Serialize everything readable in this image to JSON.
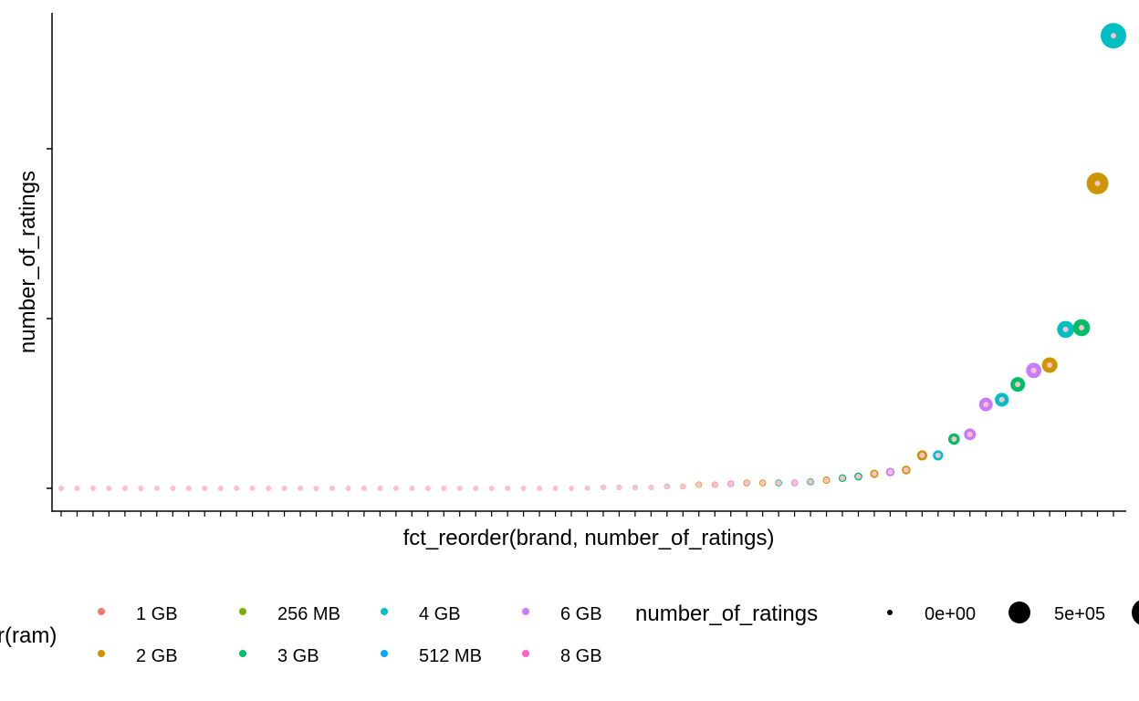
{
  "chart_data": {
    "type": "scatter",
    "title": "",
    "xlabel": "fct_reorder(brand, number_of_ratings)",
    "ylabel": "number_of_ratings",
    "y_ticks": [
      0,
      500000,
      1000000
    ],
    "ylim": [
      -35000,
      1400000
    ],
    "grid": false,
    "legend_placement": "bottom",
    "color_legend": {
      "title": "r(ram)",
      "entries": [
        {
          "label": "1 GB",
          "color": "#F8766D"
        },
        {
          "label": "2 GB",
          "color": "#CD9600"
        },
        {
          "label": "256 MB",
          "color": "#7CAE00"
        },
        {
          "label": "3 GB",
          "color": "#00BE67"
        },
        {
          "label": "4 GB",
          "color": "#00BFC4"
        },
        {
          "label": "512 MB",
          "color": "#00A9FF"
        },
        {
          "label": "6 GB",
          "color": "#C77CFF"
        },
        {
          "label": "8 GB",
          "color": "#FF61CC"
        }
      ]
    },
    "size_legend": {
      "title": "number_of_ratings",
      "entries": [
        {
          "label": "0e+00",
          "value": 0
        },
        {
          "label": "5e+05",
          "value": 500000
        },
        {
          "label": "",
          "value": 1000000
        }
      ]
    },
    "center_color": "#FFC0CB",
    "points": [
      {
        "ram": null,
        "value": 0
      },
      {
        "ram": null,
        "value": 0
      },
      {
        "ram": null,
        "value": 0
      },
      {
        "ram": null,
        "value": 0
      },
      {
        "ram": null,
        "value": 0
      },
      {
        "ram": null,
        "value": 0
      },
      {
        "ram": null,
        "value": 0
      },
      {
        "ram": null,
        "value": 0
      },
      {
        "ram": null,
        "value": 0
      },
      {
        "ram": null,
        "value": 0
      },
      {
        "ram": null,
        "value": 0
      },
      {
        "ram": null,
        "value": 0
      },
      {
        "ram": null,
        "value": 0
      },
      {
        "ram": null,
        "value": 0
      },
      {
        "ram": null,
        "value": 0
      },
      {
        "ram": null,
        "value": 0
      },
      {
        "ram": null,
        "value": 0
      },
      {
        "ram": null,
        "value": 0
      },
      {
        "ram": null,
        "value": 0
      },
      {
        "ram": null,
        "value": 0
      },
      {
        "ram": null,
        "value": 0
      },
      {
        "ram": null,
        "value": 0
      },
      {
        "ram": null,
        "value": 0
      },
      {
        "ram": null,
        "value": 0
      },
      {
        "ram": null,
        "value": 0
      },
      {
        "ram": null,
        "value": 0
      },
      {
        "ram": null,
        "value": 0
      },
      {
        "ram": null,
        "value": 0
      },
      {
        "ram": null,
        "value": 0
      },
      {
        "ram": null,
        "value": 0
      },
      {
        "ram": null,
        "value": 0
      },
      {
        "ram": null,
        "value": 0
      },
      {
        "ram": null,
        "value": 0
      },
      {
        "ram": null,
        "value": 500
      },
      {
        "ram": "2 GB",
        "value": 2700
      },
      {
        "ram": "2 GB",
        "value": 2700
      },
      {
        "ram": "3 GB",
        "value": 2700
      },
      {
        "ram": "4 GB",
        "value": 2700
      },
      {
        "ram": "3 GB",
        "value": 5400
      },
      {
        "ram": "2 GB",
        "value": 5400
      },
      {
        "ram": "2 GB",
        "value": 10800
      },
      {
        "ram": "1 GB",
        "value": 10800
      },
      {
        "ram": "8 GB",
        "value": 13400
      },
      {
        "ram": "2 GB",
        "value": 16000
      },
      {
        "ram": "2 GB",
        "value": 16000
      },
      {
        "ram": "3 GB",
        "value": 16000
      },
      {
        "ram": "6 GB",
        "value": 16000
      },
      {
        "ram": "3 GB",
        "value": 19000
      },
      {
        "ram": "2 GB",
        "value": 24000
      },
      {
        "ram": "3 GB",
        "value": 30000
      },
      {
        "ram": "3 GB",
        "value": 35000
      },
      {
        "ram": "2 GB",
        "value": 43000
      },
      {
        "ram": "6 GB",
        "value": 48000
      },
      {
        "ram": "2 GB",
        "value": 54000
      },
      {
        "ram": "2 GB",
        "value": 97000
      },
      {
        "ram": "4 GB",
        "value": 97000
      },
      {
        "ram": "3 GB",
        "value": 145000
      },
      {
        "ram": "6 GB",
        "value": 159000
      },
      {
        "ram": "6 GB",
        "value": 247000
      },
      {
        "ram": "4 GB",
        "value": 261000
      },
      {
        "ram": "3 GB",
        "value": 306000
      },
      {
        "ram": "6 GB",
        "value": 347000
      },
      {
        "ram": "2 GB",
        "value": 363000
      },
      {
        "ram": "4 GB",
        "value": 468000
      },
      {
        "ram": "3 GB",
        "value": 473000
      },
      {
        "ram": "2 GB",
        "value": 898000
      },
      {
        "ram": "4 GB",
        "value": 1333000
      }
    ]
  }
}
